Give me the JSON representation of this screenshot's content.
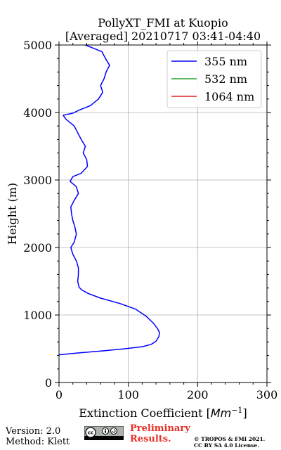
{
  "chart_data": {
    "type": "line",
    "title": "PollyXT_FMI at Kuopio",
    "subtitle": "[Averaged] 20210717 03:41-04:40",
    "xlabel": "Extinction Coefficient [Mm⁻¹]",
    "ylabel": "Height (m)",
    "xlim": [
      0,
      300
    ],
    "ylim": [
      0,
      5000
    ],
    "x_ticks": [
      "0",
      "100",
      "200",
      "300"
    ],
    "y_ticks": [
      "0",
      "1000",
      "2000",
      "3000",
      "4000",
      "5000"
    ],
    "grid": true,
    "legend_position": "top-right",
    "series": [
      {
        "name": "355 nm",
        "color": "#0000ff",
        "points": [
          [
            0,
            410
          ],
          [
            30,
            440
          ],
          [
            65,
            470
          ],
          [
            95,
            500
          ],
          [
            120,
            530
          ],
          [
            133,
            565
          ],
          [
            140,
            610
          ],
          [
            144,
            680
          ],
          [
            145,
            740
          ],
          [
            142,
            800
          ],
          [
            136,
            880
          ],
          [
            126,
            980
          ],
          [
            110,
            1090
          ],
          [
            88,
            1170
          ],
          [
            60,
            1250
          ],
          [
            42,
            1320
          ],
          [
            33,
            1370
          ],
          [
            29,
            1410
          ],
          [
            27,
            1500
          ],
          [
            28,
            1600
          ],
          [
            28,
            1700
          ],
          [
            25,
            1800
          ],
          [
            20,
            1900
          ],
          [
            17,
            2000
          ],
          [
            22,
            2080
          ],
          [
            25,
            2200
          ],
          [
            23,
            2300
          ],
          [
            20,
            2400
          ],
          [
            18,
            2500
          ],
          [
            17,
            2600
          ],
          [
            22,
            2700
          ],
          [
            28,
            2800
          ],
          [
            25,
            2900
          ],
          [
            16,
            2980
          ],
          [
            20,
            3050
          ],
          [
            32,
            3100
          ],
          [
            41,
            3200
          ],
          [
            40,
            3300
          ],
          [
            35,
            3400
          ],
          [
            38,
            3500
          ],
          [
            32,
            3600
          ],
          [
            27,
            3700
          ],
          [
            22,
            3800
          ],
          [
            10,
            3900
          ],
          [
            6,
            3960
          ],
          [
            20,
            3990
          ],
          [
            30,
            4040
          ],
          [
            45,
            4100
          ],
          [
            57,
            4200
          ],
          [
            63,
            4300
          ],
          [
            60,
            4400
          ],
          [
            65,
            4500
          ],
          [
            68,
            4600
          ],
          [
            73,
            4700
          ],
          [
            67,
            4800
          ],
          [
            62,
            4900
          ],
          [
            38,
            5000
          ]
        ]
      },
      {
        "name": "532 nm",
        "color": "#2ca02c",
        "points": []
      },
      {
        "name": "1064 nm",
        "color": "#d62728",
        "points": []
      }
    ]
  },
  "footer": {
    "version": "Version: 2.0",
    "method": "Method: Klett",
    "preliminary_line1": "Preliminary",
    "preliminary_line2": "Results.",
    "copyright_line1": "© TROPOS & FMI 2021.",
    "copyright_line2": "CC BY SA 4.0 License."
  },
  "colors": {
    "grid": "#b0b0b0",
    "preliminary": "#e8302a"
  }
}
